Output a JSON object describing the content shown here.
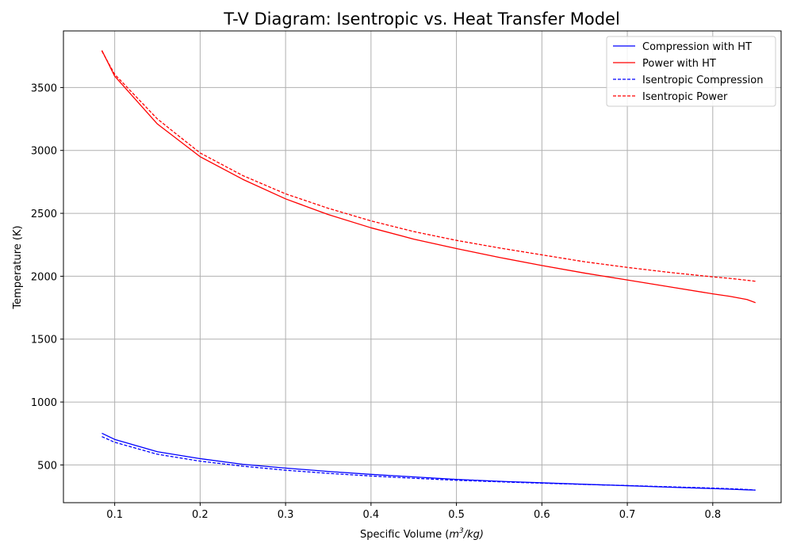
{
  "chart_data": {
    "type": "line",
    "title": "T-V Diagram: Isentropic vs. Heat Transfer Model",
    "xlabel_prefix": "Specific Volume (",
    "xlabel_math": "m",
    "xlabel_sup": "3",
    "xlabel_suffix": "/kg)",
    "ylabel": "Temperature (K)",
    "xlim": [
      0.04,
      0.88
    ],
    "ylim": [
      200,
      3950
    ],
    "xticks": [
      0.1,
      0.2,
      0.3,
      0.4,
      0.5,
      0.6,
      0.7,
      0.8
    ],
    "xtick_labels": [
      "0.1",
      "0.2",
      "0.3",
      "0.4",
      "0.5",
      "0.6",
      "0.7",
      "0.8"
    ],
    "yticks": [
      500,
      1000,
      1500,
      2000,
      2500,
      3000,
      3500
    ],
    "ytick_labels": [
      "500",
      "1000",
      "1500",
      "2000",
      "2500",
      "3000",
      "3500"
    ],
    "grid": true,
    "legend_position": "top-right",
    "x": [
      0.085,
      0.1,
      0.15,
      0.2,
      0.25,
      0.3,
      0.35,
      0.4,
      0.45,
      0.5,
      0.55,
      0.6,
      0.65,
      0.7,
      0.75,
      0.8,
      0.82,
      0.84,
      0.85
    ],
    "series": [
      {
        "name": "Compression with HT",
        "color": "#0000ff",
        "style": "solid",
        "values": [
          752,
          703,
          605,
          550,
          505,
          475,
          448,
          425,
          405,
          385,
          370,
          358,
          346,
          335,
          323,
          312,
          307,
          302,
          300
        ]
      },
      {
        "name": "Power with HT",
        "color": "#ff0000",
        "style": "solid",
        "values": [
          3795,
          3590,
          3210,
          2950,
          2770,
          2615,
          2490,
          2385,
          2295,
          2220,
          2150,
          2085,
          2025,
          1970,
          1915,
          1860,
          1840,
          1815,
          1790
        ]
      },
      {
        "name": "Isentropic Compression",
        "color": "#0000ff",
        "style": "dashed",
        "values": [
          725,
          680,
          585,
          530,
          490,
          458,
          433,
          412,
          394,
          378,
          366,
          355,
          345,
          336,
          326,
          316,
          311,
          305,
          300
        ]
      },
      {
        "name": "Isentropic Power",
        "color": "#ff0000",
        "style": "dashed",
        "values": [
          3790,
          3605,
          3250,
          2980,
          2800,
          2655,
          2540,
          2440,
          2355,
          2285,
          2225,
          2170,
          2115,
          2070,
          2030,
          1995,
          1983,
          1968,
          1960
        ]
      }
    ]
  }
}
